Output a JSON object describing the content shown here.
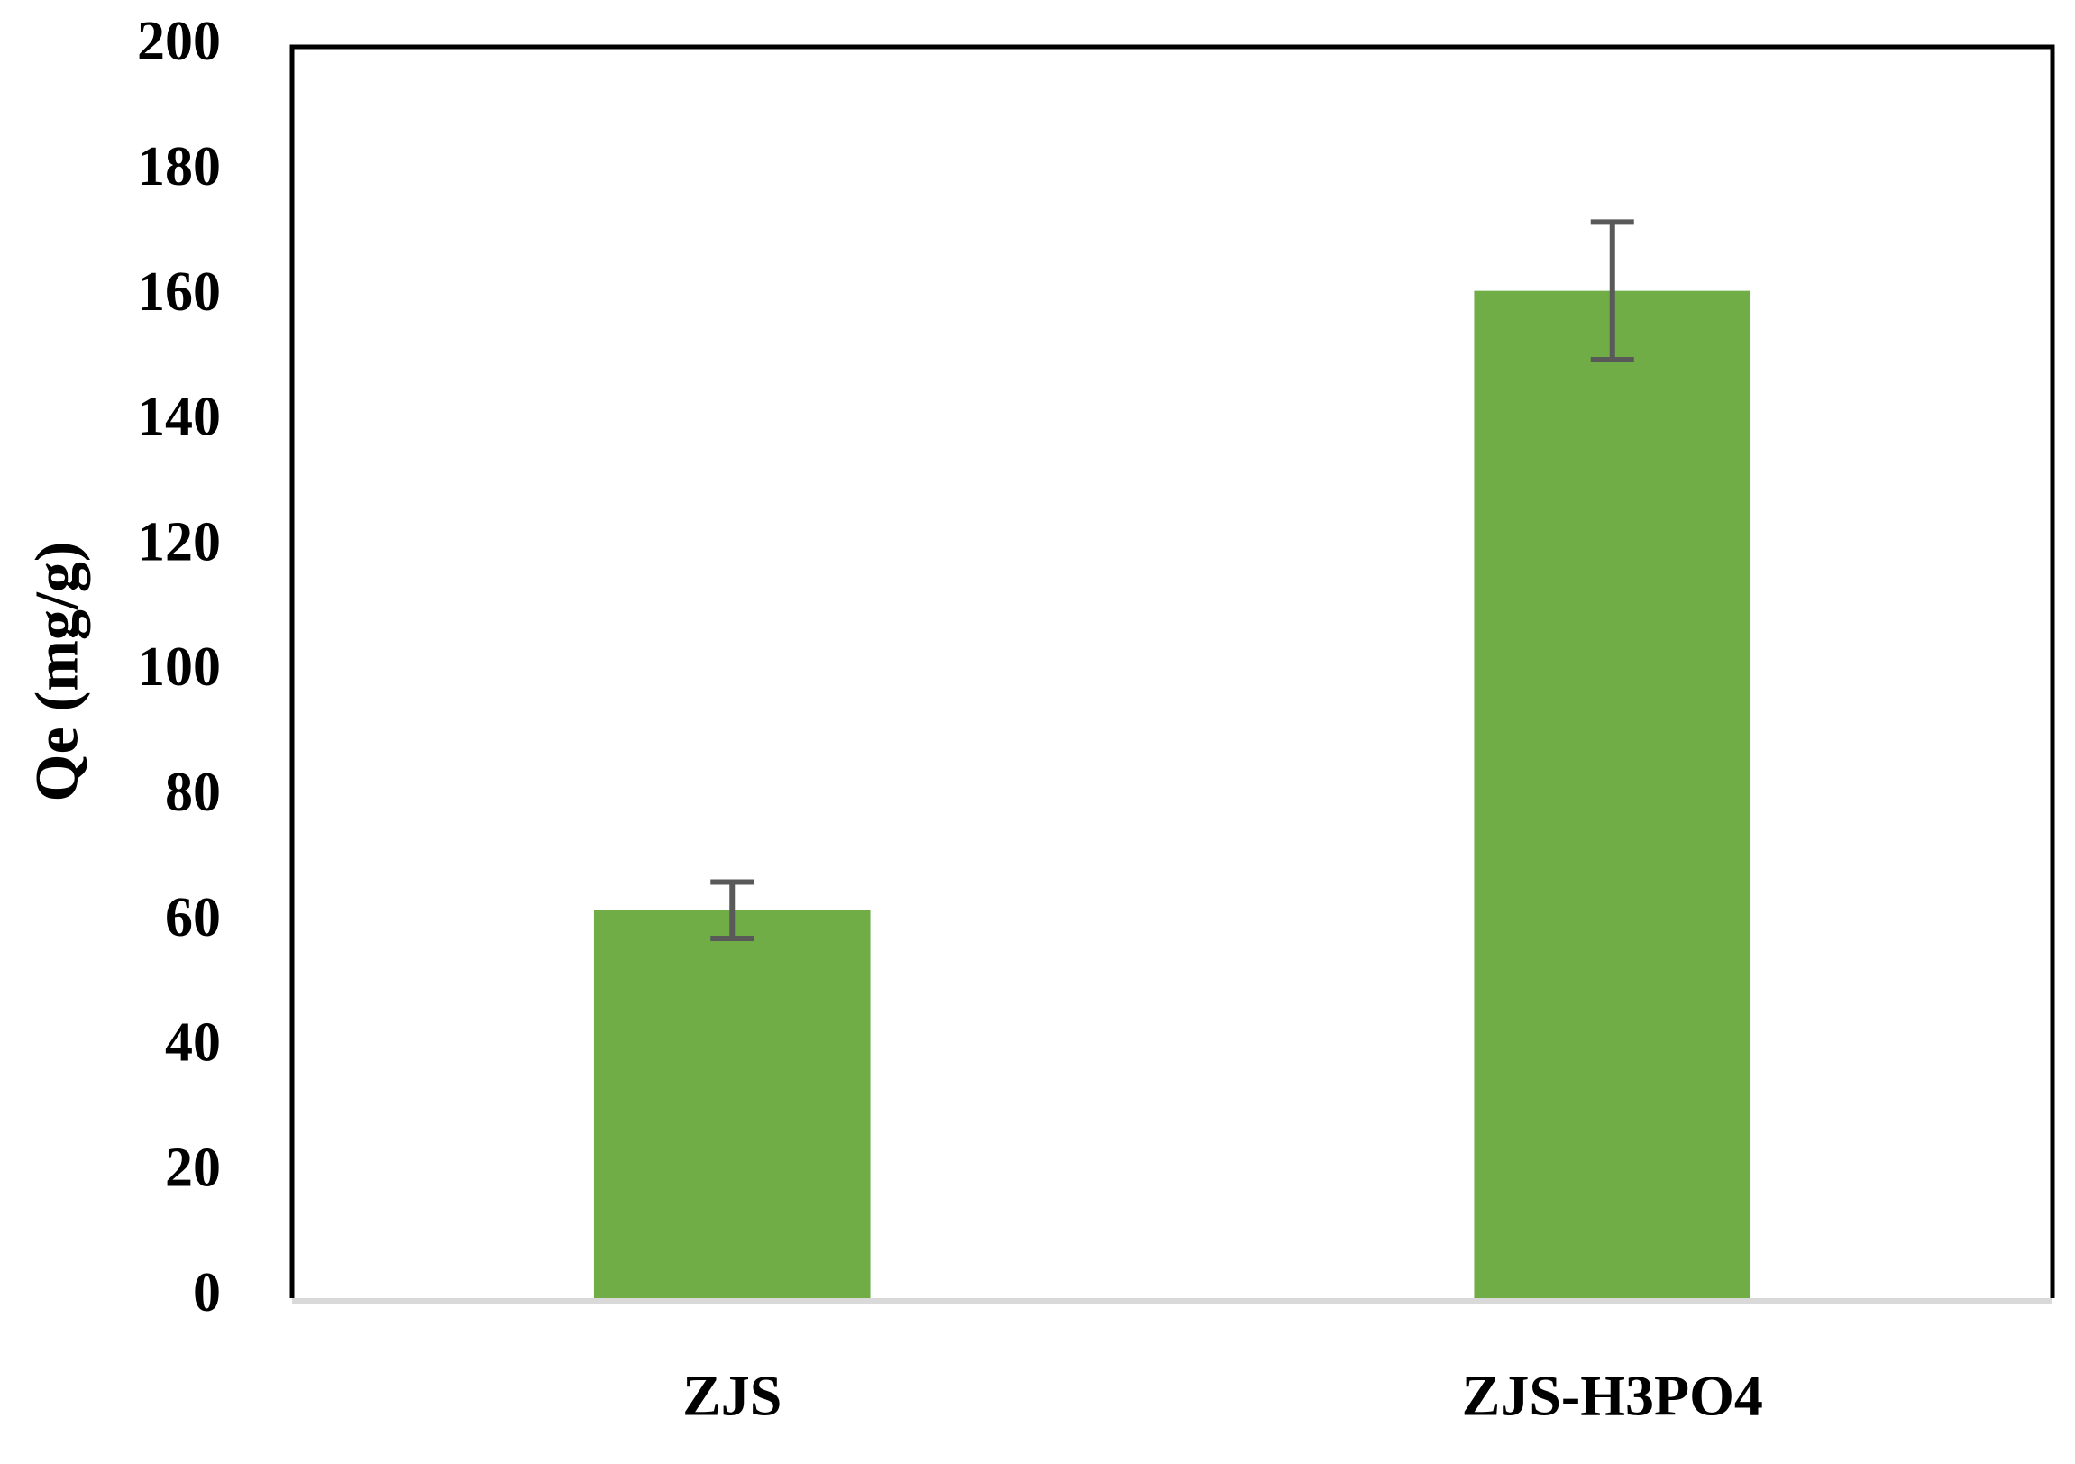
{
  "chart_data": {
    "type": "bar",
    "ylabel": "Qe (mg/g)",
    "categories": [
      "ZJS",
      "ZJS-H3PO4"
    ],
    "values": [
      62,
      161
    ],
    "errors": [
      4.5,
      11
    ],
    "color": "#70ad47",
    "error_color": "#595959",
    "ylim": [
      0,
      200
    ],
    "yticks": [
      0,
      20,
      40,
      60,
      80,
      100,
      120,
      140,
      160,
      180,
      200
    ],
    "grid": false
  }
}
